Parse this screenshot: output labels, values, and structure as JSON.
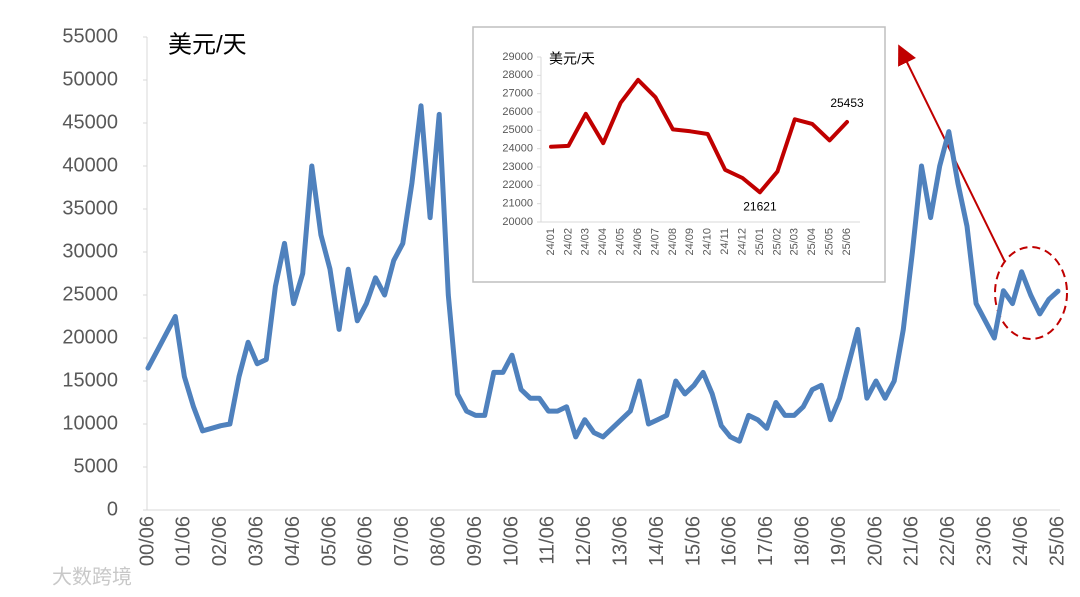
{
  "chart_data": [
    {
      "type": "line",
      "title": "美元/天",
      "categories": [
        "00/06",
        null,
        null,
        null,
        "01/06",
        null,
        null,
        null,
        "02/06",
        null,
        null,
        null,
        "03/06",
        null,
        null,
        null,
        "04/06",
        null,
        null,
        null,
        "05/06",
        null,
        null,
        null,
        "06/06",
        null,
        null,
        null,
        "07/06",
        null,
        null,
        null,
        "08/06",
        null,
        null,
        null,
        "09/06",
        null,
        null,
        null,
        "10/06",
        null,
        null,
        null,
        "11/06",
        null,
        null,
        null,
        "12/06",
        null,
        null,
        null,
        "13/06",
        null,
        null,
        null,
        "14/06",
        null,
        null,
        null,
        "15/06",
        null,
        null,
        null,
        "16/06",
        null,
        null,
        null,
        "17/06",
        null,
        null,
        null,
        "18/06",
        null,
        null,
        null,
        "19/06",
        null,
        null,
        null,
        "20/06",
        null,
        null,
        null,
        "21/06",
        null,
        null,
        null,
        "22/06",
        null,
        null,
        null,
        "23/06",
        null,
        null,
        null,
        "24/06",
        null,
        null,
        null,
        "25/06"
      ],
      "values": [
        16500,
        18500,
        20500,
        22500,
        15500,
        12000,
        9200,
        9500,
        9800,
        10000,
        15500,
        19500,
        17000,
        17500,
        26000,
        31000,
        24000,
        27500,
        40000,
        32000,
        28000,
        21000,
        28000,
        22000,
        24000,
        27000,
        25000,
        29000,
        31000,
        38000,
        47000,
        34000,
        46000,
        25000,
        13500,
        11500,
        11000,
        11000,
        16000,
        16000,
        18000,
        14000,
        13000,
        13000,
        11500,
        11500,
        12000,
        8500,
        10500,
        9000,
        8500,
        9500,
        10500,
        11500,
        15000,
        10000,
        10500,
        11000,
        15000,
        13500,
        14500,
        16000,
        13500,
        9800,
        8500,
        8000,
        11000,
        10500,
        9500,
        12500,
        11000,
        11000,
        12000,
        14000,
        14500,
        10500,
        13000,
        17000,
        21000,
        13000,
        15000,
        13000,
        15000,
        21000,
        30000,
        40000,
        34000,
        40000,
        44000,
        38000,
        33000,
        24000,
        22000,
        20000,
        25500,
        24000,
        27700,
        25000,
        22800,
        24500,
        25453
      ],
      "color": "#4f81bd",
      "ylim": [
        0,
        55000
      ],
      "yticks": [
        0,
        5000,
        10000,
        15000,
        20000,
        25000,
        30000,
        35000,
        40000,
        45000,
        50000,
        55000
      ],
      "watermark": "大数跨境"
    },
    {
      "type": "line",
      "title": "美元/天",
      "categories": [
        "24/01",
        "24/02",
        "24/03",
        "24/04",
        "24/05",
        "24/06",
        "24/07",
        "24/08",
        "24/09",
        "24/10",
        "24/11",
        "24/12",
        "25/01",
        "25/02",
        "25/03",
        "25/04",
        "25/05",
        "25/06"
      ],
      "values": [
        24100,
        24150,
        25900,
        24300,
        26500,
        27750,
        26800,
        25050,
        24950,
        24800,
        22850,
        22400,
        21621,
        22750,
        25600,
        25350,
        24450,
        25453
      ],
      "value_labels": [
        null,
        null,
        null,
        null,
        null,
        null,
        null,
        null,
        null,
        null,
        null,
        null,
        "21621",
        null,
        null,
        null,
        null,
        "25453"
      ],
      "color": "#c00000",
      "ylim": [
        20000,
        29000
      ],
      "yticks": [
        20000,
        21000,
        22000,
        23000,
        24000,
        25000,
        26000,
        27000,
        28000,
        29000
      ]
    }
  ]
}
